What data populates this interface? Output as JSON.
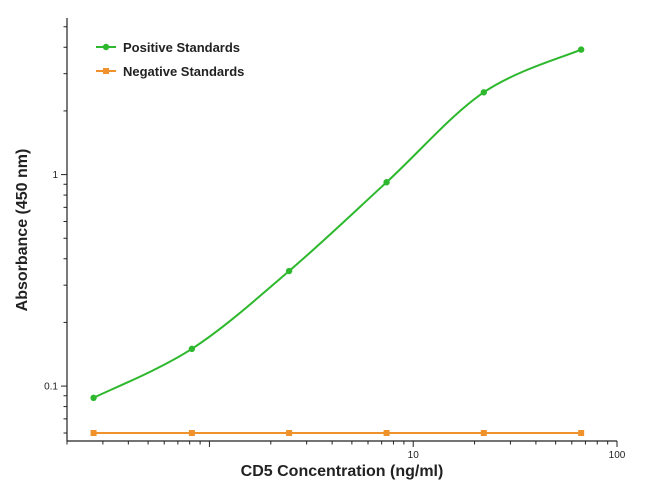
{
  "chart_data": {
    "type": "line",
    "title": "",
    "xlabel": "CD5 Concentration (ng/ml)",
    "ylabel": "Absorbance (450 nm)",
    "xscale": "log",
    "yscale": "log",
    "xlim": [
      0.2,
      100
    ],
    "ylim": [
      0.055,
      5.5
    ],
    "x_ticks": [
      {
        "value": 10,
        "label": "10"
      },
      {
        "value": 100,
        "label": "100"
      }
    ],
    "y_ticks": [
      {
        "value": 0.1,
        "label": "0.1"
      },
      {
        "value": 1,
        "label": "1"
      }
    ],
    "grid": false,
    "legend_position": "top-left",
    "series": [
      {
        "name": "Positive Standards",
        "color": "#2db82d",
        "marker": "circle",
        "x": [
          0.27,
          0.82,
          2.46,
          7.4,
          22.2,
          66.7
        ],
        "y": [
          0.088,
          0.15,
          0.35,
          0.92,
          2.45,
          3.9
        ]
      },
      {
        "name": "Negative Standards",
        "color": "#f0922b",
        "marker": "square",
        "x": [
          0.27,
          0.82,
          2.46,
          7.4,
          22.2,
          66.7
        ],
        "y": [
          0.06,
          0.06,
          0.06,
          0.06,
          0.06,
          0.06
        ]
      }
    ]
  }
}
